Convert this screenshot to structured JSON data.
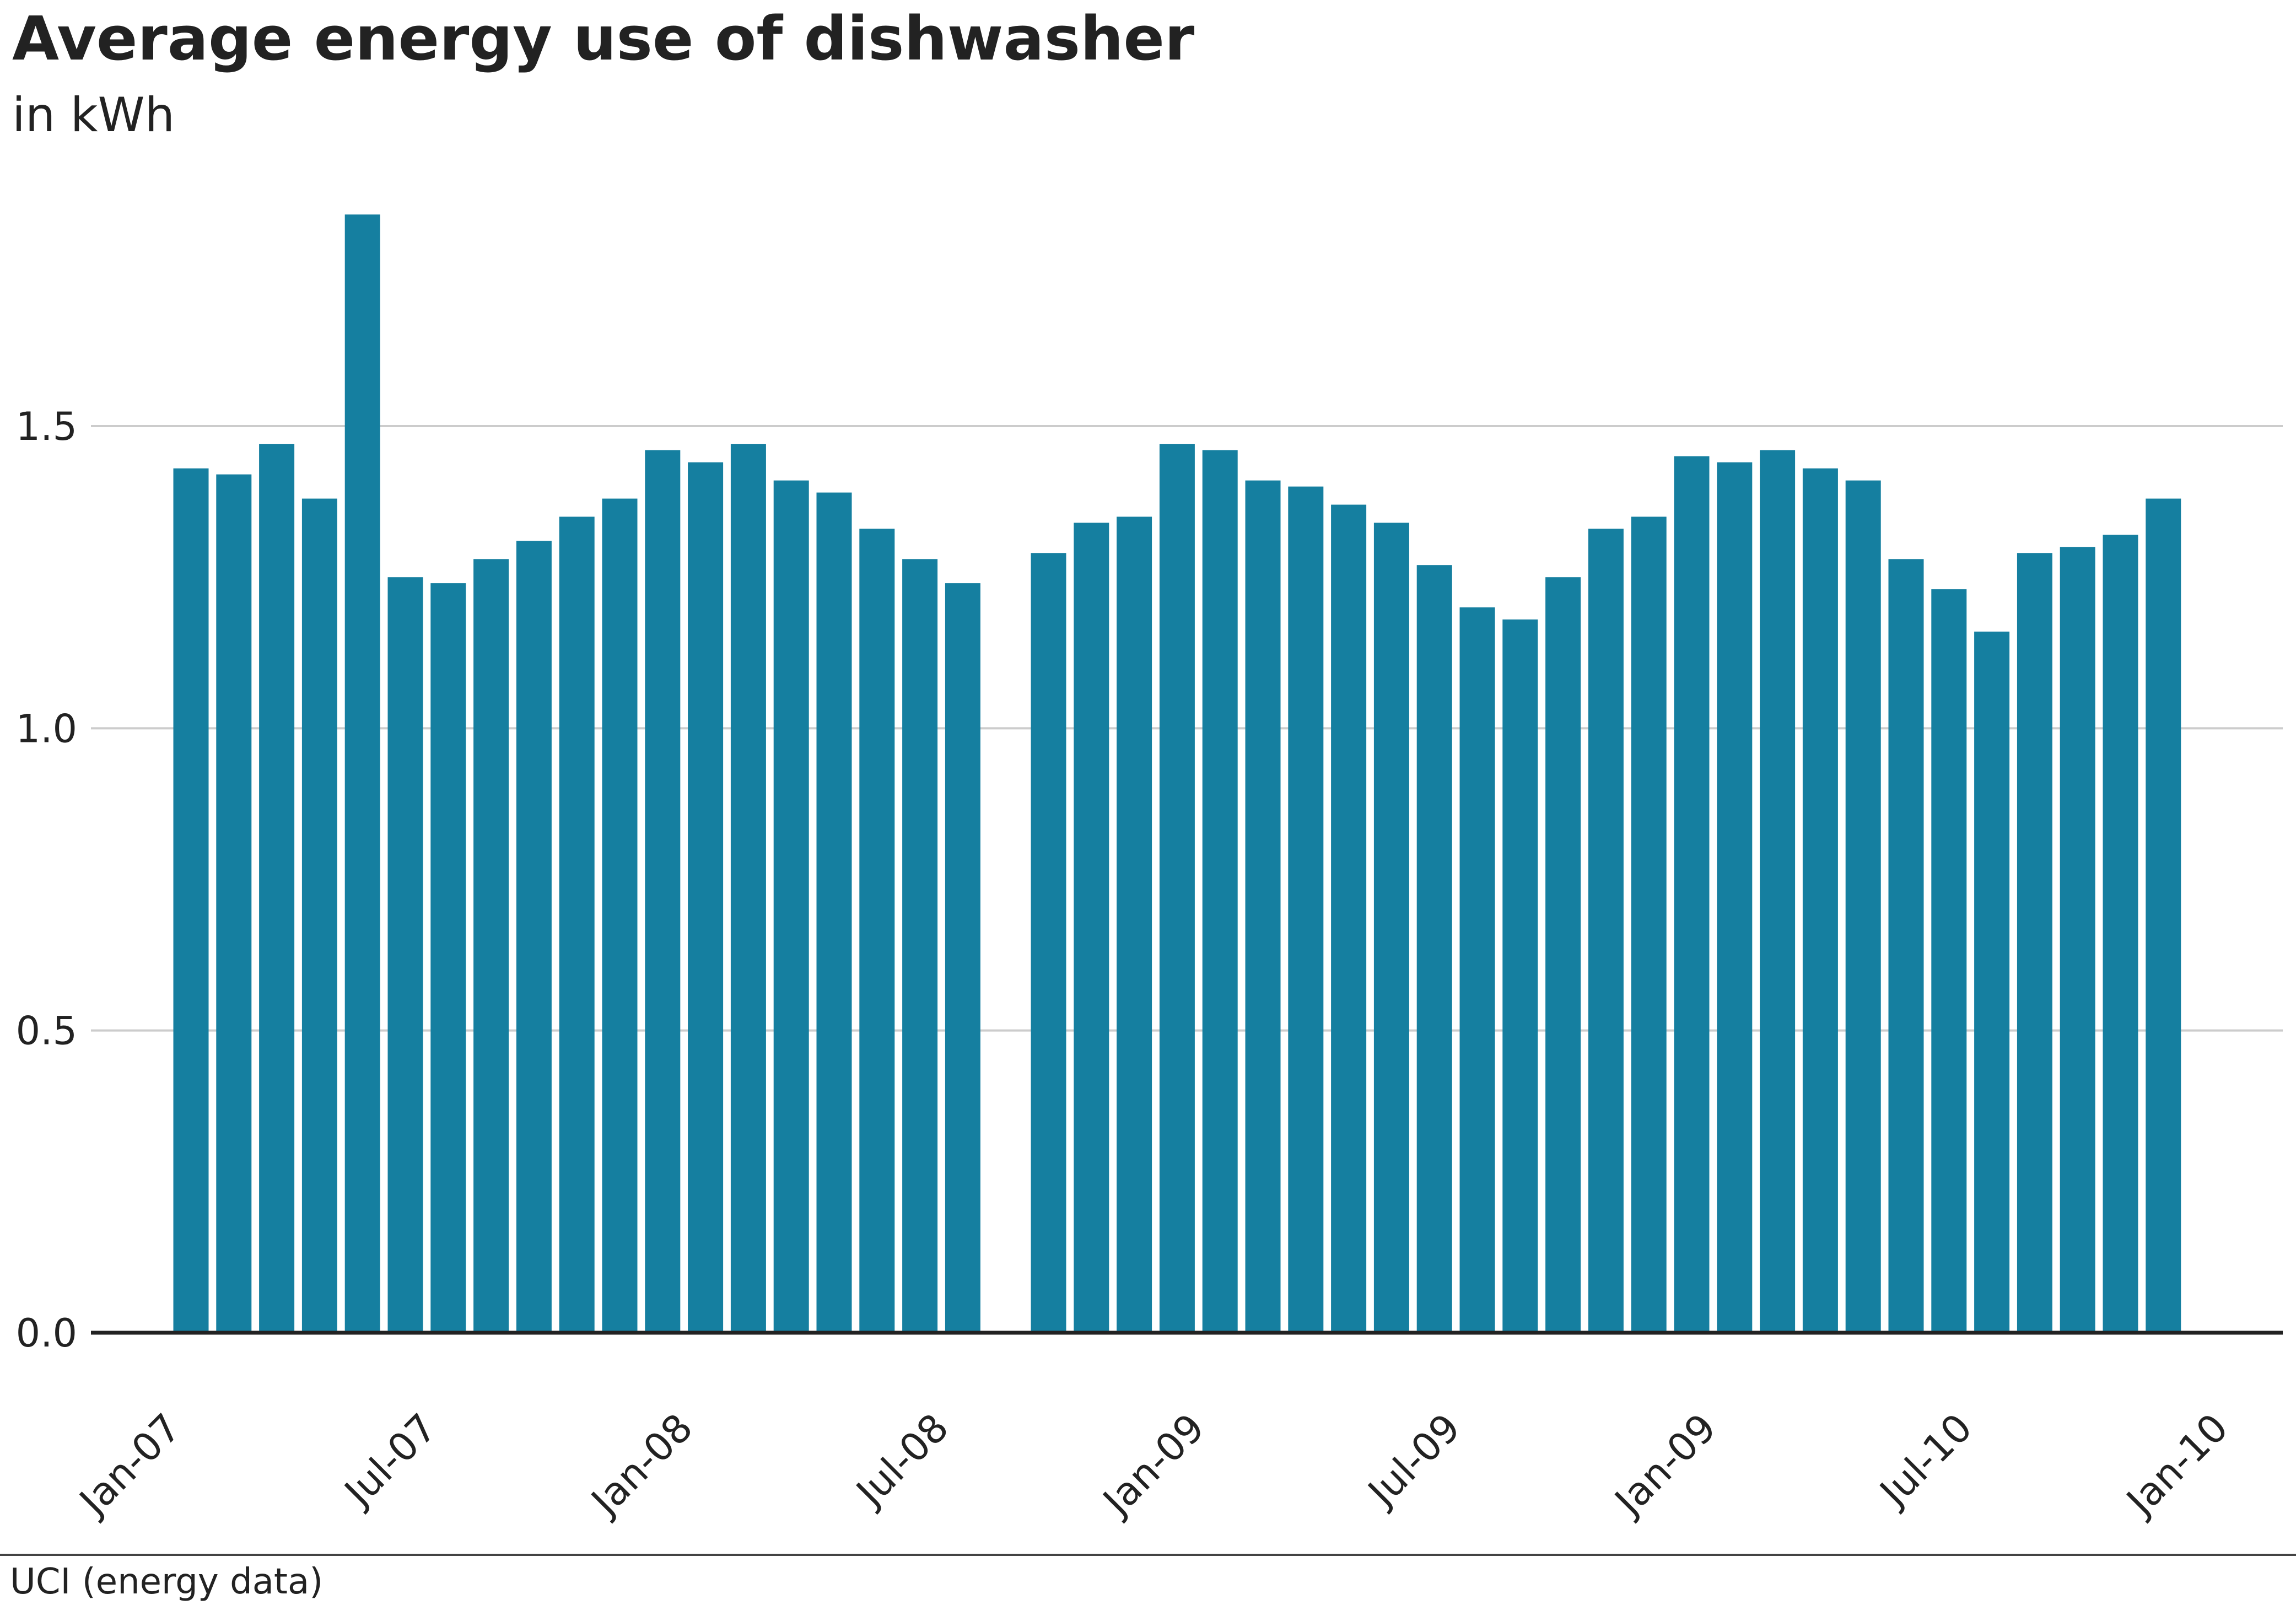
{
  "chart_data": {
    "type": "bar",
    "title": "Average energy use of dishwasher",
    "subtitle": "in kWh",
    "xlabel": "",
    "ylabel": "",
    "ylim": [
      0,
      1.9
    ],
    "yticks": [
      0.0,
      0.5,
      1.0,
      1.5
    ],
    "ytick_labels": [
      "0.0",
      "0.5",
      "1.0",
      "1.5"
    ],
    "xtick_labels": [
      "Jan-07",
      "Jul-07",
      "Jan-08",
      "Jul-08",
      "Jan-09",
      "Jul-09",
      "Jan-09",
      "Jul-10",
      "Jan-10"
    ],
    "grid": true,
    "bar_color": "#157fa0",
    "values": [
      1.43,
      1.42,
      1.47,
      1.38,
      1.85,
      1.25,
      1.24,
      1.28,
      1.31,
      1.35,
      1.38,
      1.46,
      1.44,
      1.47,
      1.41,
      1.39,
      1.33,
      1.28,
      1.24,
      null,
      1.29,
      1.34,
      1.35,
      1.47,
      1.46,
      1.41,
      1.4,
      1.37,
      1.34,
      1.27,
      1.2,
      1.18,
      1.25,
      1.33,
      1.35,
      1.45,
      1.44,
      1.46,
      1.43,
      1.41,
      1.28,
      1.23,
      1.16,
      1.29,
      1.3,
      1.32,
      1.38
    ]
  },
  "source": "UCI (energy data)"
}
